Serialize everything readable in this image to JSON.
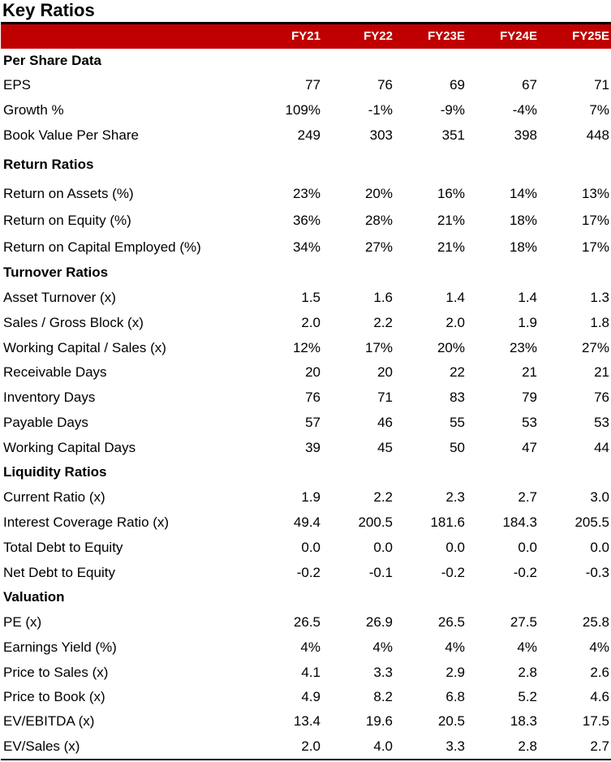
{
  "title": "Key Ratios",
  "columns": [
    "FY21",
    "FY22",
    "FY23E",
    "FY24E",
    "FY25E"
  ],
  "rows": [
    {
      "type": "section",
      "label": "Per Share Data"
    },
    {
      "type": "data",
      "label": "EPS",
      "values": [
        "77",
        "76",
        "69",
        "67",
        "71"
      ]
    },
    {
      "type": "data",
      "label": "Growth %",
      "values": [
        "109%",
        "-1%",
        "-9%",
        "-4%",
        "7%"
      ]
    },
    {
      "type": "data",
      "label": "Book Value Per Share",
      "values": [
        "249",
        "303",
        "351",
        "398",
        "448"
      ]
    },
    {
      "type": "section",
      "label": "Return Ratios"
    },
    {
      "type": "data",
      "label": "Return on Assets (%)",
      "values": [
        "23%",
        "20%",
        "16%",
        "14%",
        "13%"
      ]
    },
    {
      "type": "data",
      "label": "Return on Equity (%)",
      "values": [
        "36%",
        "28%",
        "21%",
        "18%",
        "17%"
      ]
    },
    {
      "type": "data",
      "label": "Return on Capital Employed (%)",
      "values": [
        "34%",
        "27%",
        "21%",
        "18%",
        "17%"
      ]
    },
    {
      "type": "section",
      "label": "Turnover Ratios"
    },
    {
      "type": "data",
      "label": "Asset Turnover (x)",
      "values": [
        "1.5",
        "1.6",
        "1.4",
        "1.4",
        "1.3"
      ]
    },
    {
      "type": "data",
      "label": "Sales / Gross Block (x)",
      "values": [
        "2.0",
        "2.2",
        "2.0",
        "1.9",
        "1.8"
      ]
    },
    {
      "type": "data",
      "label": "Working Capital / Sales (x)",
      "values": [
        "12%",
        "17%",
        "20%",
        "23%",
        "27%"
      ]
    },
    {
      "type": "data",
      "label": "Receivable Days",
      "values": [
        "20",
        "20",
        "22",
        "21",
        "21"
      ]
    },
    {
      "type": "data",
      "label": "Inventory Days",
      "values": [
        "76",
        "71",
        "83",
        "79",
        "76"
      ]
    },
    {
      "type": "data",
      "label": "Payable Days",
      "values": [
        "57",
        "46",
        "55",
        "53",
        "53"
      ]
    },
    {
      "type": "data",
      "label": "Working Capital Days",
      "values": [
        "39",
        "45",
        "50",
        "47",
        "44"
      ]
    },
    {
      "type": "section",
      "label": "Liquidity Ratios"
    },
    {
      "type": "data",
      "label": "Current Ratio (x)",
      "values": [
        "1.9",
        "2.2",
        "2.3",
        "2.7",
        "3.0"
      ]
    },
    {
      "type": "data",
      "label": "Interest Coverage Ratio (x)",
      "values": [
        "49.4",
        "200.5",
        "181.6",
        "184.3",
        "205.5"
      ]
    },
    {
      "type": "data",
      "label": "Total Debt to Equity",
      "values": [
        "0.0",
        "0.0",
        "0.0",
        "0.0",
        "0.0"
      ]
    },
    {
      "type": "data",
      "label": "Net Debt to Equity",
      "values": [
        "-0.2",
        "-0.1",
        "-0.2",
        "-0.2",
        "-0.3"
      ]
    },
    {
      "type": "section",
      "label": "Valuation"
    },
    {
      "type": "data",
      "label": "PE (x)",
      "values": [
        "26.5",
        "26.9",
        "26.5",
        "27.5",
        "25.8"
      ]
    },
    {
      "type": "data",
      "label": "Earnings Yield (%)",
      "values": [
        "4%",
        "4%",
        "4%",
        "4%",
        "4%"
      ]
    },
    {
      "type": "data",
      "label": "Price to Sales (x)",
      "values": [
        "4.1",
        "3.3",
        "2.9",
        "2.8",
        "2.6"
      ]
    },
    {
      "type": "data",
      "label": "Price to Book (x)",
      "values": [
        "4.9",
        "8.2",
        "6.8",
        "5.2",
        "4.6"
      ]
    },
    {
      "type": "data",
      "label": "EV/EBITDA (x)",
      "values": [
        "13.4",
        "19.6",
        "20.5",
        "18.3",
        "17.5"
      ]
    },
    {
      "type": "data",
      "label": "EV/Sales (x)",
      "values": [
        "2.0",
        "4.0",
        "3.3",
        "2.8",
        "2.7"
      ]
    }
  ]
}
